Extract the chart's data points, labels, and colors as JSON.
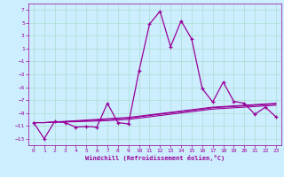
{
  "x": [
    0,
    1,
    2,
    3,
    4,
    5,
    6,
    7,
    8,
    9,
    10,
    11,
    12,
    13,
    14,
    15,
    16,
    17,
    18,
    19,
    20,
    21,
    22,
    23
  ],
  "line_main": [
    -10.5,
    -13.0,
    -10.3,
    -10.5,
    -11.2,
    -11.1,
    -11.2,
    -7.5,
    -10.5,
    -10.7,
    -2.5,
    4.8,
    6.8,
    1.3,
    5.3,
    2.5,
    -5.2,
    -7.3,
    -4.2,
    -7.2,
    -7.5,
    -9.2,
    -8.1,
    -9.6
  ],
  "line_ref1": [
    -10.5,
    -10.5,
    -10.45,
    -10.4,
    -10.35,
    -10.3,
    -10.25,
    -10.2,
    -10.1,
    -10.0,
    -9.8,
    -9.6,
    -9.4,
    -9.2,
    -9.0,
    -8.8,
    -8.6,
    -8.4,
    -8.3,
    -8.2,
    -8.1,
    -8.0,
    -7.9,
    -7.8
  ],
  "line_ref2": [
    -10.5,
    -10.5,
    -10.4,
    -10.3,
    -10.2,
    -10.1,
    -10.0,
    -9.9,
    -9.8,
    -9.7,
    -9.5,
    -9.3,
    -9.1,
    -8.9,
    -8.7,
    -8.5,
    -8.3,
    -8.1,
    -8.0,
    -7.9,
    -7.8,
    -7.7,
    -7.6,
    -7.5
  ],
  "line_ref3": [
    -10.5,
    -10.5,
    -10.4,
    -10.35,
    -10.3,
    -10.2,
    -10.1,
    -10.0,
    -9.9,
    -9.8,
    -9.6,
    -9.4,
    -9.2,
    -9.0,
    -8.8,
    -8.6,
    -8.4,
    -8.2,
    -8.1,
    -8.0,
    -7.9,
    -7.8,
    -7.7,
    -7.6
  ],
  "line_color": "#990099",
  "bg_color": "#cceeff",
  "grid_color": "#aaddcc",
  "xlabel": "Windchill (Refroidissement éolien,°C)",
  "ylim": [
    -14,
    8
  ],
  "xlim": [
    -0.5,
    23.5
  ],
  "yticks": [
    7,
    5,
    3,
    1,
    -1,
    -3,
    -5,
    -7,
    -9,
    -11,
    -13
  ],
  "xticks": [
    0,
    1,
    2,
    3,
    4,
    5,
    6,
    7,
    8,
    9,
    10,
    11,
    12,
    13,
    14,
    15,
    16,
    17,
    18,
    19,
    20,
    21,
    22,
    23
  ]
}
